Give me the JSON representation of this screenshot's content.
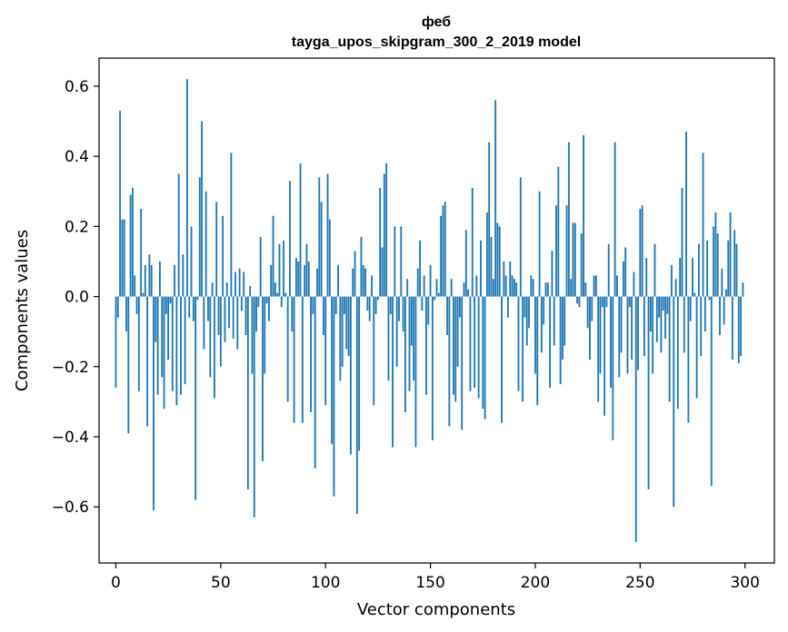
{
  "chart_data": {
    "type": "bar",
    "title_line1": "феб",
    "title_line2": "tayga_upos_skipgram_300_2_2019 model",
    "xlabel": "Vector components",
    "ylabel": "Components values",
    "xlim": [
      -8,
      314
    ],
    "ylim": [
      -0.76,
      0.68
    ],
    "xticks": [
      0,
      50,
      100,
      150,
      200,
      250,
      300
    ],
    "xtick_labels": [
      "0",
      "50",
      "100",
      "150",
      "200",
      "250",
      "300"
    ],
    "yticks": [
      -0.6,
      -0.4,
      -0.2,
      0.0,
      0.2,
      0.4,
      0.6
    ],
    "ytick_labels": [
      "−0.6",
      "−0.4",
      "−0.2",
      "0.0",
      "0.2",
      "0.4",
      "0.6"
    ],
    "bar_color": "#1f77b4",
    "x": [
      0,
      1,
      2,
      3,
      4,
      5,
      6,
      7,
      8,
      9,
      10,
      11,
      12,
      13,
      14,
      15,
      16,
      17,
      18,
      19,
      20,
      21,
      22,
      23,
      24,
      25,
      26,
      27,
      28,
      29,
      30,
      31,
      32,
      33,
      34,
      35,
      36,
      37,
      38,
      39,
      40,
      41,
      42,
      43,
      44,
      45,
      46,
      47,
      48,
      49,
      50,
      51,
      52,
      53,
      54,
      55,
      56,
      57,
      58,
      59,
      60,
      61,
      62,
      63,
      64,
      65,
      66,
      67,
      68,
      69,
      70,
      71,
      72,
      73,
      74,
      75,
      76,
      77,
      78,
      79,
      80,
      81,
      82,
      83,
      84,
      85,
      86,
      87,
      88,
      89,
      90,
      91,
      92,
      93,
      94,
      95,
      96,
      97,
      98,
      99,
      100,
      101,
      102,
      103,
      104,
      105,
      106,
      107,
      108,
      109,
      110,
      111,
      112,
      113,
      114,
      115,
      116,
      117,
      118,
      119,
      120,
      121,
      122,
      123,
      124,
      125,
      126,
      127,
      128,
      129,
      130,
      131,
      132,
      133,
      134,
      135,
      136,
      137,
      138,
      139,
      140,
      141,
      142,
      143,
      144,
      145,
      146,
      147,
      148,
      149,
      150,
      151,
      152,
      153,
      154,
      155,
      156,
      157,
      158,
      159,
      160,
      161,
      162,
      163,
      164,
      165,
      166,
      167,
      168,
      169,
      170,
      171,
      172,
      173,
      174,
      175,
      176,
      177,
      178,
      179,
      180,
      181,
      182,
      183,
      184,
      185,
      186,
      187,
      188,
      189,
      190,
      191,
      192,
      193,
      194,
      195,
      196,
      197,
      198,
      199,
      200,
      201,
      202,
      203,
      204,
      205,
      206,
      207,
      208,
      209,
      210,
      211,
      212,
      213,
      214,
      215,
      216,
      217,
      218,
      219,
      220,
      221,
      222,
      223,
      224,
      225,
      226,
      227,
      228,
      229,
      230,
      231,
      232,
      233,
      234,
      235,
      236,
      237,
      238,
      239,
      240,
      241,
      242,
      243,
      244,
      245,
      246,
      247,
      248,
      249,
      250,
      251,
      252,
      253,
      254,
      255,
      256,
      257,
      258,
      259,
      260,
      261,
      262,
      263,
      264,
      265,
      266,
      267,
      268,
      269,
      270,
      271,
      272,
      273,
      274,
      275,
      276,
      277,
      278,
      279,
      280,
      281,
      282,
      283,
      284,
      285,
      286,
      287,
      288,
      289,
      290,
      291,
      292,
      293,
      294,
      295,
      296,
      297,
      298,
      299
    ],
    "values": [
      -0.26,
      -0.06,
      0.53,
      0.22,
      0.22,
      -0.1,
      -0.39,
      0.29,
      0.31,
      0.06,
      -0.05,
      -0.27,
      0.25,
      0.01,
      0.09,
      -0.37,
      0.12,
      0.09,
      -0.61,
      -0.13,
      -0.28,
      0.1,
      -0.23,
      -0.32,
      -0.05,
      -0.18,
      -0.02,
      -0.27,
      0.09,
      -0.31,
      0.35,
      -0.28,
      0.12,
      -0.25,
      0.62,
      -0.06,
      0.2,
      -0.07,
      -0.58,
      -0.01,
      0.34,
      0.5,
      -0.15,
      0.3,
      -0.07,
      -0.23,
      0.04,
      -0.29,
      0.27,
      -0.11,
      -0.2,
      0.23,
      -0.13,
      0.04,
      -0.09,
      0.41,
      -0.12,
      0.07,
      -0.15,
      0.08,
      -0.04,
      0.07,
      -0.11,
      -0.55,
      0.03,
      -0.22,
      -0.63,
      -0.1,
      -0.03,
      0.17,
      -0.47,
      -0.22,
      -0.02,
      -0.07,
      0.09,
      0.23,
      0.04,
      0.01,
      0.15,
      -0.03,
      0.16,
      0.01,
      -0.3,
      0.33,
      -0.1,
      -0.36,
      0.11,
      0.1,
      0.38,
      -0.36,
      0.09,
      0.15,
      0.1,
      -0.33,
      -0.05,
      -0.49,
      0.08,
      0.34,
      0.27,
      -0.11,
      -0.31,
      0.35,
      0.22,
      -0.42,
      -0.57,
      -0.05,
      0.09,
      -0.24,
      -0.2,
      -0.05,
      -0.15,
      -0.17,
      -0.45,
      0.08,
      0.13,
      -0.62,
      -0.44,
      0.17,
      0.09,
      0.08,
      -0.04,
      -0.07,
      0.06,
      -0.31,
      -0.05,
      -0.01,
      0.31,
      0.14,
      0.35,
      0.38,
      -0.24,
      -0.05,
      -0.43,
      0.2,
      -0.2,
      -0.07,
      0.2,
      -0.1,
      -0.33,
      0.05,
      -0.27,
      -0.14,
      -0.24,
      -0.43,
      0.08,
      0.16,
      -0.04,
      0.06,
      -0.28,
      -0.08,
      0.09,
      -0.41,
      -0.01,
      0.05,
      0.01,
      0.23,
      0.26,
      0.27,
      -0.11,
      -0.37,
      0.05,
      -0.28,
      -0.3,
      -0.2,
      -0.06,
      -0.38,
      0.04,
      0.19,
      0.02,
      -0.27,
      0.31,
      -0.26,
      0.06,
      -0.29,
      0.16,
      -0.32,
      -0.35,
      0.24,
      0.44,
      0.17,
      0.05,
      0.56,
      0.21,
      0.2,
      -0.36,
      0.1,
      0.06,
      -0.06,
      0.1,
      0.06,
      0.05,
      0.04,
      -0.27,
      0.34,
      -0.3,
      -0.06,
      -0.14,
      -0.09,
      0.06,
      0.05,
      -0.22,
      -0.31,
      0.3,
      -0.16,
      -0.08,
      0.04,
      0.04,
      -0.26,
      0.13,
      -0.14,
      0.26,
      0.37,
      -0.25,
      -0.18,
      -0.14,
      0.26,
      0.44,
      0.05,
      0.21,
      0.21,
      -0.02,
      -0.03,
      0.18,
      0.46,
      0.04,
      -0.09,
      -0.18,
      -0.07,
      0.06,
      0.06,
      -0.3,
      -0.22,
      -0.03,
      -0.34,
      -0.03,
      0.15,
      -0.26,
      -0.41,
      0.44,
      0.06,
      -0.23,
      -0.16,
      0.1,
      0.14,
      -0.22,
      -0.03,
      -0.18,
      0.07,
      -0.7,
      -0.21,
      0.25,
      0.26,
      -0.17,
      0.11,
      -0.55,
      -0.1,
      -0.22,
      0.15,
      -0.13,
      -0.06,
      -0.16,
      -0.04,
      -0.12,
      -0.05,
      -0.3,
      0.09,
      -0.6,
      0.05,
      -0.32,
      0.11,
      0.31,
      -0.16,
      0.47,
      -0.36,
      -0.07,
      0.11,
      0.01,
      -0.29,
      0.15,
      -0.17,
      0.41,
      -0.1,
      0.16,
      -0.01,
      -0.54,
      0.2,
      0.24,
      0.18,
      -0.11,
      0.08,
      -0.08,
      0.02,
      0.16,
      0.24,
      -0.18,
      0.19,
      0.15,
      -0.19,
      -0.17,
      0.04
    ]
  }
}
